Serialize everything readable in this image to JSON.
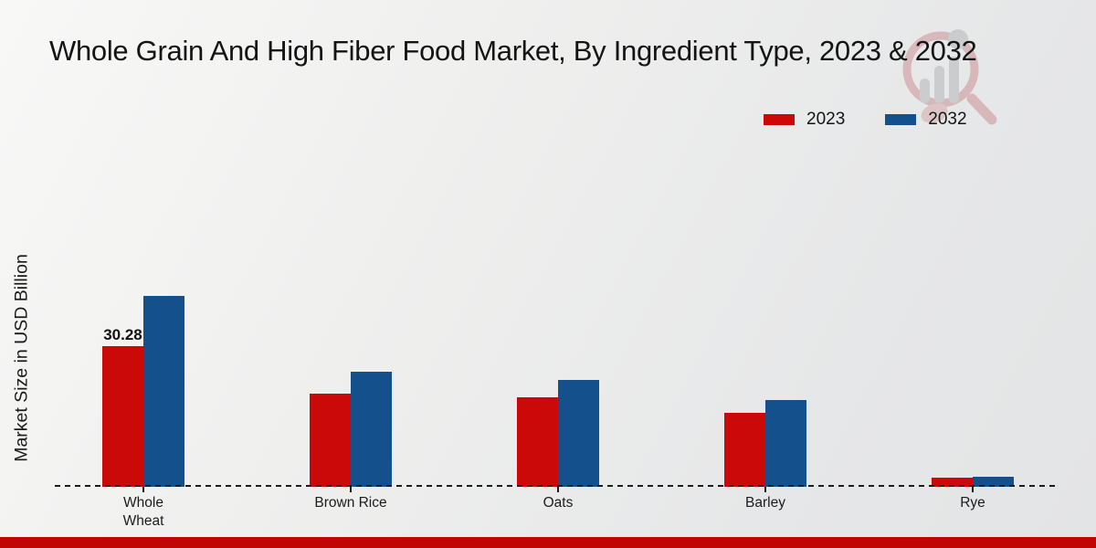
{
  "page": {
    "accent_bar_color": "#c10505",
    "watermark_icon": "magnifier-bar-chart-logo"
  },
  "chart_data": {
    "type": "bar",
    "title": "Whole Grain And High Fiber Food Market, By Ingredient Type, 2023 & 2032",
    "ylabel": "Market Size in USD Billion",
    "xlabel": "",
    "categories": [
      "Whole Wheat",
      "Brown Rice",
      "Oats",
      "Barley",
      "Rye"
    ],
    "tick_labels": [
      "Whole\nWheat",
      "Brown Rice",
      "Oats",
      "Barley",
      "Rye"
    ],
    "series": [
      {
        "name": "2023",
        "color": "#cc0909",
        "values": [
          30.28,
          20.1,
          19.3,
          15.9,
          1.9
        ],
        "data_labels": [
          "30.28",
          "",
          "",
          "",
          ""
        ]
      },
      {
        "name": "2032",
        "color": "#14508c",
        "values": [
          41.1,
          24.8,
          23.1,
          18.7,
          2.2
        ],
        "data_labels": [
          "",
          "",
          "",
          "",
          ""
        ]
      }
    ],
    "ylim": [
      0,
      45
    ],
    "y_axis_tick_labels_visible": false,
    "grid": false,
    "baseline_style": "dashed",
    "legend_position": "top-right"
  }
}
